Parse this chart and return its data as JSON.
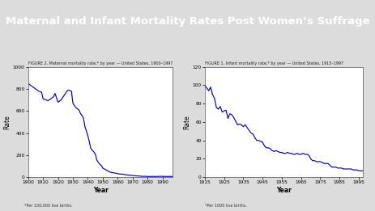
{
  "title": "Maternal and Infant Mortality Rates Post Women’s Suffrage",
  "title_bg": "#1e3a5f",
  "title_color": "#ffffff",
  "accent_bar_color": "#5a9e3a",
  "bg_color": "#dcdcdc",
  "plot_bg": "#ffffff",
  "line_color": "#0000cc",
  "fig1_title": "FIGURE 2. Maternal mortality rate,* by year — United States, 1900–1997",
  "fig1_xlabel": "Year",
  "fig1_ylabel": "Rate",
  "fig1_footnote": "*Per 100,000 live births.",
  "fig1_ylim": [
    0,
    1000
  ],
  "fig1_yticks": [
    0,
    200,
    400,
    600,
    800,
    1000
  ],
  "fig1_xticks": [
    1900,
    1910,
    1920,
    1930,
    1940,
    1950,
    1960,
    1970,
    1980,
    1990
  ],
  "fig2_title": "FIGURE 1. Infant mortality rate,* by year — United States, 1915–1997",
  "fig2_xlabel": "Year",
  "fig2_ylabel": "Rate",
  "fig2_footnote": "*Per 1000 live births.",
  "fig2_ylim": [
    0,
    120
  ],
  "fig2_yticks": [
    0,
    20,
    40,
    60,
    80,
    100,
    120
  ],
  "fig2_xticks": [
    1915,
    1925,
    1935,
    1945,
    1955,
    1965,
    1975,
    1985,
    1995
  ],
  "maternal_years": [
    1900,
    1901,
    1902,
    1903,
    1904,
    1905,
    1906,
    1907,
    1908,
    1909,
    1910,
    1911,
    1912,
    1913,
    1914,
    1915,
    1916,
    1917,
    1918,
    1919,
    1920,
    1921,
    1922,
    1923,
    1924,
    1925,
    1926,
    1927,
    1928,
    1929,
    1930,
    1931,
    1932,
    1933,
    1934,
    1935,
    1936,
    1937,
    1938,
    1939,
    1940,
    1941,
    1942,
    1943,
    1944,
    1945,
    1946,
    1947,
    1948,
    1949,
    1950,
    1951,
    1952,
    1953,
    1954,
    1955,
    1956,
    1957,
    1958,
    1959,
    1960,
    1961,
    1962,
    1963,
    1964,
    1965,
    1966,
    1967,
    1968,
    1969,
    1970,
    1971,
    1972,
    1973,
    1974,
    1975,
    1976,
    1977,
    1978,
    1979,
    1980,
    1981,
    1982,
    1983,
    1984,
    1985,
    1986,
    1987,
    1988,
    1989,
    1990,
    1991,
    1992,
    1993,
    1994,
    1995,
    1996,
    1997
  ],
  "maternal_rates": [
    850,
    840,
    830,
    820,
    810,
    800,
    790,
    780,
    775,
    770,
    710,
    705,
    700,
    695,
    700,
    710,
    720,
    730,
    760,
    720,
    680,
    690,
    700,
    720,
    740,
    760,
    780,
    790,
    785,
    780,
    670,
    650,
    630,
    620,
    610,
    580,
    560,
    540,
    460,
    420,
    376,
    320,
    260,
    245,
    230,
    210,
    156,
    135,
    118,
    107,
    83,
    75,
    68,
    61,
    52,
    47,
    41,
    41,
    38,
    37,
    32,
    30,
    29,
    28,
    26,
    24,
    22,
    20,
    19,
    18,
    16,
    14,
    13,
    12,
    11,
    10,
    9,
    8,
    8,
    8,
    7,
    7,
    7,
    7,
    7,
    7,
    7,
    7,
    8,
    8,
    8,
    7,
    7,
    7,
    7,
    7,
    7,
    7
  ],
  "infant_years": [
    1915,
    1916,
    1917,
    1918,
    1919,
    1920,
    1921,
    1922,
    1923,
    1924,
    1925,
    1926,
    1927,
    1928,
    1929,
    1930,
    1931,
    1932,
    1933,
    1934,
    1935,
    1936,
    1937,
    1938,
    1939,
    1940,
    1941,
    1942,
    1943,
    1944,
    1945,
    1946,
    1947,
    1948,
    1949,
    1950,
    1951,
    1952,
    1953,
    1954,
    1955,
    1956,
    1957,
    1958,
    1959,
    1960,
    1961,
    1962,
    1963,
    1964,
    1965,
    1966,
    1967,
    1968,
    1969,
    1970,
    1971,
    1972,
    1973,
    1974,
    1975,
    1976,
    1977,
    1978,
    1979,
    1980,
    1981,
    1982,
    1983,
    1984,
    1985,
    1986,
    1987,
    1988,
    1989,
    1990,
    1991,
    1992,
    1993,
    1994,
    1995,
    1996,
    1997
  ],
  "infant_rates": [
    100,
    97,
    94,
    98,
    90,
    86,
    76,
    74,
    77,
    71,
    72,
    73,
    64,
    69,
    68,
    65,
    61,
    57,
    58,
    57,
    55,
    57,
    54,
    51,
    48,
    47,
    43,
    40,
    40,
    39,
    38,
    34,
    32,
    32,
    31,
    29,
    28,
    29,
    28,
    27,
    27,
    26,
    26,
    27,
    26,
    26,
    25,
    25,
    26,
    25,
    25,
    26,
    25,
    25,
    24,
    20,
    18,
    18,
    17,
    17,
    17,
    16,
    15,
    15,
    15,
    13,
    11,
    11,
    11,
    10,
    10,
    10,
    9,
    9,
    9,
    9,
    9,
    8,
    8,
    8,
    7,
    7,
    7
  ]
}
